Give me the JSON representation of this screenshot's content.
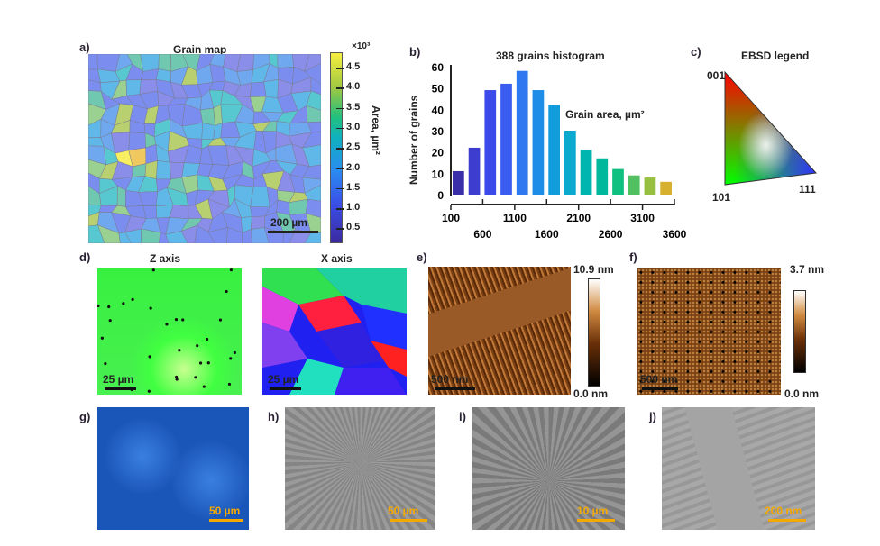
{
  "panels": {
    "a": {
      "label": "a)",
      "title": "Grain map",
      "scale": "200 µm",
      "cbar_exp": "×10³",
      "cbar_label": "Area, µm²",
      "cbar_ticks": [
        "4.5",
        "4.0",
        "3.5",
        "3.0",
        "2.5",
        "2.0",
        "1.5",
        "1.0",
        "0.5"
      ]
    },
    "b": {
      "label": "b)"
    },
    "c": {
      "label": "c)",
      "title": "EBSD legend",
      "v001": "001",
      "v101": "101",
      "v111": "111"
    },
    "d": {
      "label": "d)",
      "z_title": "Z axis",
      "x_title": "X axis",
      "z_scale": "25 µm",
      "x_scale": "25 µm"
    },
    "e": {
      "label": "e)",
      "scale": "500 nm",
      "cmax": "10.9 nm",
      "cmin": "0.0 nm"
    },
    "f": {
      "label": "f)",
      "scale": "500 nm",
      "cmax": "3.7 nm",
      "cmin": "0.0 nm"
    },
    "g": {
      "label": "g)",
      "scale": "50 µm"
    },
    "h": {
      "label": "h)",
      "scale": "50 µm"
    },
    "i": {
      "label": "i)",
      "scale": "10 µm"
    },
    "j": {
      "label": "j)",
      "scale": "200 nm"
    }
  },
  "colors": {
    "scalebar_orange": "#f5a800",
    "afm_brown": "#8a4a18"
  },
  "chart_data": {
    "type": "bar",
    "title": "388 grains histogram",
    "xlabel": "Grain area, µm²",
    "ylabel": "Number of grains",
    "ylim": [
      0,
      60
    ],
    "yticks": [
      "0",
      "10",
      "20",
      "30",
      "40",
      "50",
      "60"
    ],
    "xticks_top": [
      "100",
      "1100",
      "2100",
      "3100"
    ],
    "xticks_bottom": [
      "600",
      "1600",
      "2600",
      "3600"
    ],
    "xlim": [
      100,
      3600
    ],
    "bin_width": 250,
    "values": [
      11,
      22,
      49,
      52,
      58,
      49,
      42,
      30,
      21,
      17,
      12,
      9,
      8,
      6
    ],
    "bar_colors": [
      "#3a2fa8",
      "#3d3dd0",
      "#3b4ae8",
      "#3a5cf0",
      "#2f78f0",
      "#1e8de8",
      "#129cdc",
      "#09aacd",
      "#00b4b0",
      "#00b89c",
      "#10c080",
      "#50c060",
      "#98c040",
      "#d8b030"
    ],
    "grid": false
  }
}
